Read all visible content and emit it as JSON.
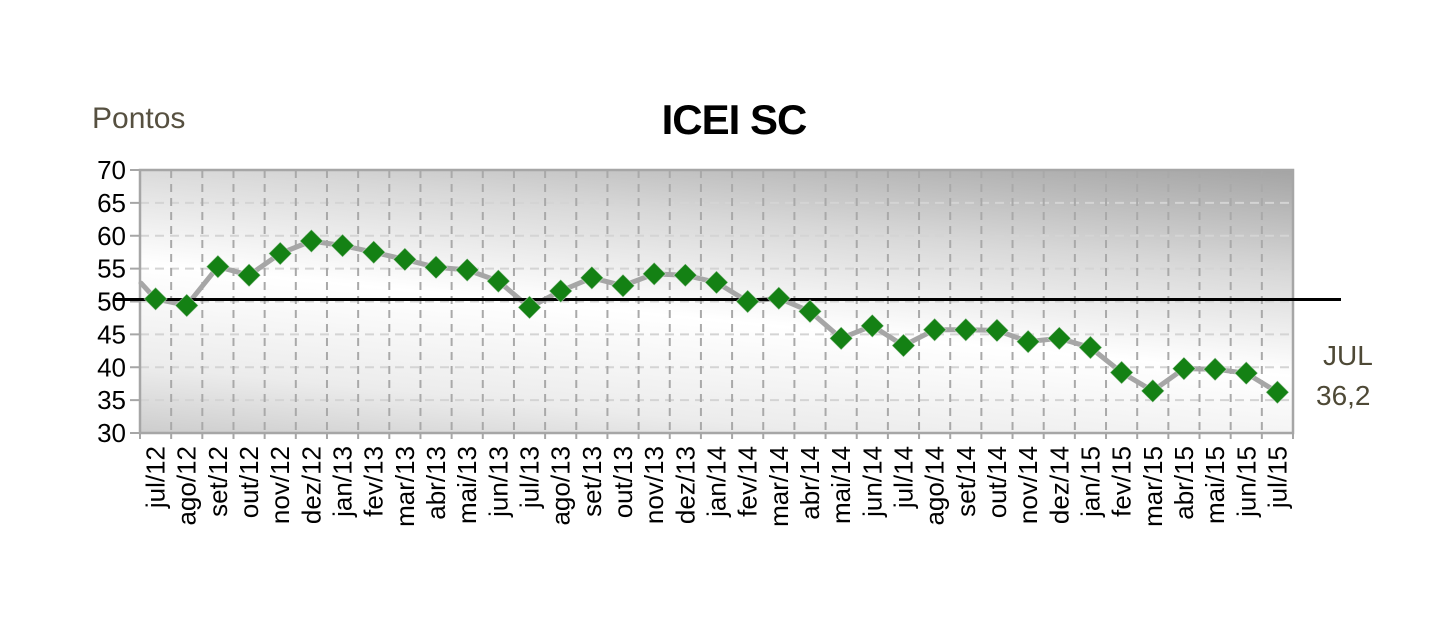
{
  "chart_data": {
    "type": "line",
    "title": "ICEI SC",
    "ylabel": "Pontos",
    "categories": [
      "jul/12",
      "ago/12",
      "set/12",
      "out/12",
      "nov/12",
      "dez/12",
      "jan/13",
      "fev/13",
      "mar/13",
      "abr/13",
      "mai/13",
      "jun/13",
      "jul/13",
      "ago/13",
      "set/13",
      "out/13",
      "nov/13",
      "dez/13",
      "jan/14",
      "fev/14",
      "mar/14",
      "abr/14",
      "mai/14",
      "jun/14",
      "jul/14",
      "ago/14",
      "set/14",
      "out/14",
      "nov/14",
      "dez/14",
      "jan/15",
      "fev/15",
      "mar/15",
      "abr/15",
      "mai/15",
      "jun/15",
      "jul/15"
    ],
    "values": [
      50.4,
      49.4,
      55.3,
      54.0,
      57.3,
      59.2,
      58.5,
      57.5,
      56.4,
      55.2,
      54.8,
      53.1,
      49.1,
      51.6,
      53.6,
      52.4,
      54.2,
      54.0,
      52.9,
      50.0,
      50.5,
      48.5,
      44.4,
      46.3,
      43.3,
      45.7,
      45.7,
      45.6,
      43.9,
      44.4,
      43.0,
      39.2,
      36.4,
      39.8,
      39.7,
      39.1,
      36.2
    ],
    "ylim": [
      30,
      70
    ],
    "yticks": [
      70,
      65,
      60,
      55,
      50,
      45,
      40,
      35,
      30
    ],
    "reference_line_y": 50,
    "lead_in_value": 52.8,
    "grid": "dashed",
    "legend": "none",
    "marker_shape": "diamond",
    "annotation_last_point": {
      "label": "JUL",
      "value_text": "36,2",
      "value": 36.2
    },
    "colors": {
      "marker": "#148114",
      "series_line": "#a6a6a6",
      "reference_line": "#000000",
      "border": "#a6a6a6",
      "grid_horizontal": "#d4d4d4",
      "grid_vertical": "#a9a9a9",
      "axis_text": "#000000",
      "annotation_text": "#4e4936",
      "y_axis_title_text": "#565040",
      "plot_bg_dark": "#a4a4a4",
      "plot_bg_mid": "#d8d8d8",
      "plot_bg_light": "#ffffff",
      "plot_bg_bottom": "#cdcdcd"
    }
  }
}
